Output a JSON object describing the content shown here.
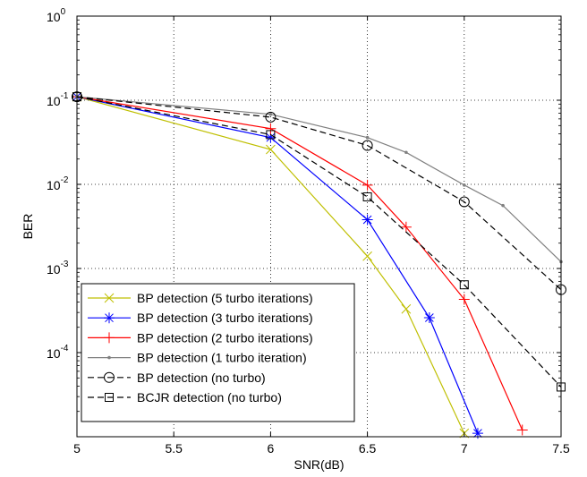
{
  "chart_data": {
    "type": "line",
    "title": "",
    "xlabel": "SNR(dB)",
    "ylabel": "BER",
    "xlim": [
      5,
      7.5
    ],
    "ylim": [
      1e-05,
      1
    ],
    "yscale": "log",
    "grid": true,
    "legend_position": "bottom-left",
    "x_ticks": [
      {
        "value": 5,
        "label": "5"
      },
      {
        "value": 5.5,
        "label": "5.5"
      },
      {
        "value": 6,
        "label": "6"
      },
      {
        "value": 6.5,
        "label": "6.5"
      },
      {
        "value": 7,
        "label": "7"
      },
      {
        "value": 7.5,
        "label": "7.5"
      }
    ],
    "y_ticks": [
      {
        "value": 1,
        "base": "10",
        "exp": "0"
      },
      {
        "value": 0.1,
        "base": "10",
        "exp": "-1"
      },
      {
        "value": 0.01,
        "base": "10",
        "exp": "-2"
      },
      {
        "value": 0.001,
        "base": "10",
        "exp": "-3"
      },
      {
        "value": 0.0001,
        "base": "10",
        "exp": "-4"
      }
    ],
    "series": [
      {
        "name": "BP detection (5 turbo iterations)",
        "color": "#bfbf00",
        "marker": "x",
        "dash": "solid",
        "x": [
          5,
          6,
          6.5,
          6.7,
          7
        ],
        "y": [
          0.11,
          0.026,
          0.0014,
          0.00033,
          1.1e-05
        ]
      },
      {
        "name": "BP detection (3 turbo iterations)",
        "color": "#0000ff",
        "marker": "star",
        "dash": "solid",
        "x": [
          5,
          6,
          6.5,
          6.82,
          7.07
        ],
        "y": [
          0.11,
          0.036,
          0.0038,
          0.00026,
          1.1e-05
        ]
      },
      {
        "name": "BP detection (2 turbo iterations)",
        "color": "#ff0000",
        "marker": "plus",
        "dash": "solid",
        "x": [
          5,
          6,
          6.5,
          6.7,
          7,
          7.3
        ],
        "y": [
          0.11,
          0.046,
          0.0098,
          0.0031,
          0.00043,
          1.2e-05
        ]
      },
      {
        "name": "BP detection (1 turbo iteration)",
        "color": "#808080",
        "marker": "dot",
        "dash": "solid",
        "x": [
          5,
          6,
          6.5,
          6.7,
          7,
          7.2,
          7.5
        ],
        "y": [
          0.11,
          0.068,
          0.036,
          0.024,
          0.0098,
          0.0056,
          0.0012
        ]
      },
      {
        "name": "BP detection (no turbo)",
        "color": "#000000",
        "marker": "circle",
        "dash": "dashed",
        "x": [
          5,
          6,
          6.5,
          7,
          7.5
        ],
        "y": [
          0.11,
          0.063,
          0.029,
          0.0062,
          0.00056
        ]
      },
      {
        "name": "BCJR detection (no turbo)",
        "color": "#000000",
        "marker": "square",
        "dash": "dashed",
        "x": [
          5,
          6,
          6.5,
          7,
          7.5
        ],
        "y": [
          0.11,
          0.039,
          0.0071,
          0.00064,
          3.9e-05
        ]
      }
    ]
  }
}
